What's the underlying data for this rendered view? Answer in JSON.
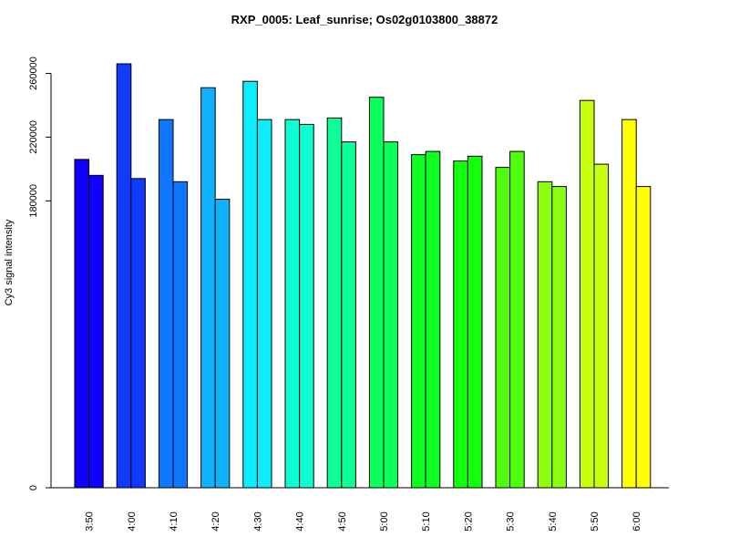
{
  "chart_data": {
    "type": "bar",
    "title": "RXP_0005: Leaf_sunrise; Os02g0103800_38872",
    "xlabel": "",
    "ylabel": "Cy3 signal intensity",
    "ylim": [
      0,
      282000
    ],
    "yticks": [
      {
        "value": 0,
        "label": "0"
      },
      {
        "value": 180000,
        "label": "180000"
      },
      {
        "value": 220000,
        "label": "220000"
      },
      {
        "value": 260000,
        "label": "260000"
      }
    ],
    "categories": [
      "3:50",
      "4:00",
      "4:10",
      "4:20",
      "4:30",
      "4:40",
      "4:50",
      "5:00",
      "5:10",
      "5:20",
      "5:30",
      "5:40",
      "5:50",
      "6:00"
    ],
    "colors": [
      "#1000ff",
      "#0f3bff",
      "#0f77ff",
      "#0fb2ff",
      "#0eedff",
      "#0effd4",
      "#0eff98",
      "#0dff5d",
      "#0dff21",
      "#13ff0d",
      "#4ffe0d",
      "#8bff0c",
      "#c7ff0c",
      "#ffff00"
    ],
    "series": [
      {
        "values": [
          206000,
          266000,
          231000,
          251000,
          255000,
          231000,
          232000,
          245000,
          209000,
          205000,
          201000,
          192000,
          243000,
          231000
        ]
      },
      {
        "values": [
          196000,
          194000,
          192000,
          181000,
          231000,
          228000,
          217000,
          217000,
          211000,
          208000,
          211000,
          189000,
          203000,
          189000
        ]
      }
    ],
    "grid": false,
    "legend": "none"
  }
}
